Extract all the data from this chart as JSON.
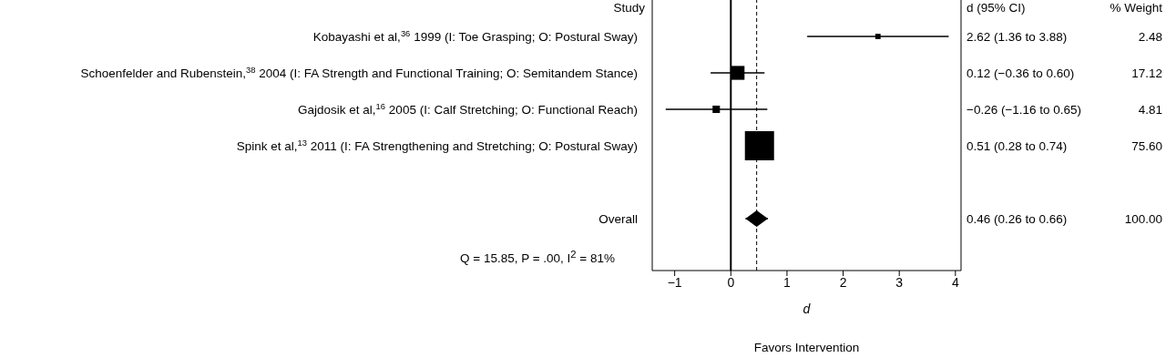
{
  "chart_data": {
    "type": "bubble",
    "orientation": "horizontal",
    "categories": [
      "Kobayashi et al,$^{36}$ 1999 (I: Toe Grasping; O: Postural Sway)",
      "Schoenfelder and Rubenstein,$^{38}$ 2004 (I: FA Strength and Functional Training; O: Semitandem Stance)",
      "Gajdosik et al,$^{16}$ 2005 (I: Calf Stretching; O: Functional Reach)",
      "Spink et al,$^{13}$ 2011 (I: FA Strengthening and Stretching; O: Postural Sway)",
      null,
      "Overall"
    ],
    "series": [
      {
        "type": "bubble",
        "marker": "square",
        "color": "#000000",
        "values": [
          2.62,
          0.12,
          -0.26,
          0.51,
          null,
          null
        ],
        "errors": [
          [
            1.36,
            3.88
          ],
          [
            -0.36,
            0.6
          ],
          [
            -1.16,
            0.65
          ],
          [
            0.28,
            0.74
          ],
          null,
          null
        ],
        "sizes": [
          0.0328,
          0.2265,
          0.0636,
          1,
          null,
          null
        ]
      },
      {
        "type": "scatter",
        "marker": "diamond",
        "color": "#000000",
        "values": [
          null,
          null,
          null,
          null,
          null,
          0.46
        ],
        "errors": [
          null,
          null,
          null,
          null,
          null,
          [
            0.26,
            0.66
          ]
        ]
      }
    ],
    "xlim": [
      -1.4,
      4.1
    ],
    "xticks": [
      {
        "value": -1,
        "label": "−1"
      },
      0,
      1,
      2,
      3,
      4
    ],
    "xlabel": "d",
    "ref_lines": [
      {
        "axis": "x",
        "value": 0,
        "color": "#000000",
        "line_style": "solid"
      },
      {
        "axis": "x",
        "value": 0.46,
        "color": "#000000",
        "line_style": "dashed"
      }
    ],
    "annotations": [
      "Study",
      "d (95% CI)",
      "% Weight",
      "Q = 15.85, P = .00, I$^{2}$ = 81%",
      "Favors Intervention",
      "2.62 (1.36 to 3.88)",
      "2.48",
      "0.12 (−0.36 to 0.60)",
      "17.12",
      "−0.26 (−1.16 to 0.65)",
      "4.81",
      "0.51 (0.28 to 0.74)",
      "75.60",
      "0.46 (0.26 to 0.66)",
      "100.00"
    ]
  }
}
